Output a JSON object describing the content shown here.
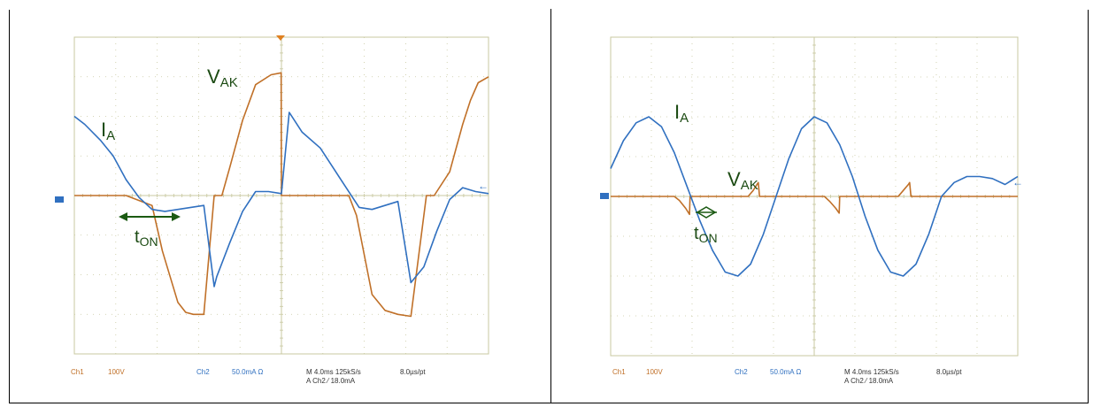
{
  "chart_data": [
    {
      "type": "line",
      "panel": "left",
      "title": "",
      "xlabel": "",
      "ylabel": "",
      "grid": true,
      "annotations": {
        "ia": "I",
        "ia_sub": "A",
        "vak": "V",
        "vak_sub": "AK",
        "ton": "t",
        "ton_sub": "ON"
      },
      "footer": {
        "ch1": "Ch1",
        "ch1_scale": "100V",
        "ch2": "Ch2",
        "ch2_scale": "50.0mA Ω",
        "timebase": "M 4.0ms 125kS/s",
        "pt": "8.0µs/pt",
        "trigger": "A Ch2 ⁄ 18.0mA"
      },
      "series": [
        {
          "name": "V_AK",
          "color": "#c07028",
          "x": [
            0,
            0.6,
            1,
            2,
            3,
            3.4,
            4,
            4.3,
            4.6,
            5,
            5.4,
            5.7,
            6,
            6.5,
            7,
            7.6,
            7.99,
            8,
            8.01,
            9.5,
            10.6,
            10.9,
            11.2,
            11.5,
            12,
            12.5,
            13,
            13.6,
            13.9,
            14.5,
            15,
            15.3,
            15.6,
            16
          ],
          "y": [
            0,
            0,
            0,
            0,
            -0.25,
            -1.4,
            -2.7,
            -2.95,
            -3,
            -3,
            0,
            0,
            0.7,
            1.9,
            2.8,
            3.05,
            3.1,
            0,
            0,
            0,
            0,
            -0.5,
            -1.5,
            -2.5,
            -2.9,
            -3,
            -3.05,
            0,
            0,
            0.6,
            1.8,
            2.4,
            2.85,
            3
          ]
        },
        {
          "name": "I_A",
          "color": "#3070c0",
          "x": [
            0,
            0.4,
            1,
            1.5,
            2,
            2.5,
            3,
            3.5,
            4,
            4.5,
            5,
            5.4,
            5.5,
            6,
            6.5,
            7,
            7.5,
            8,
            8.3,
            8.8,
            9.5,
            10,
            10.5,
            11,
            11.5,
            12,
            12.5,
            13,
            13.5,
            14,
            14.5,
            15,
            15.5,
            16
          ],
          "y": [
            2,
            1.8,
            1.4,
            1,
            0.4,
            -0.05,
            -0.35,
            -0.4,
            -0.35,
            -0.3,
            -0.25,
            -2.3,
            -2.05,
            -1.2,
            -0.4,
            0.1,
            0.1,
            0.05,
            2.1,
            1.6,
            1.2,
            0.7,
            0.2,
            -0.3,
            -0.35,
            -0.25,
            -0.15,
            -2.2,
            -1.8,
            -0.9,
            -0.1,
            0.2,
            0.1,
            0.05
          ]
        }
      ]
    },
    {
      "type": "line",
      "panel": "right",
      "title": "",
      "xlabel": "",
      "ylabel": "",
      "grid": true,
      "annotations": {
        "ia": "I",
        "ia_sub": "A",
        "vak": "V",
        "vak_sub": "AK",
        "ton": "t",
        "ton_sub": "ON"
      },
      "footer": {
        "ch1": "Ch1",
        "ch1_scale": "100V",
        "ch2": "Ch2",
        "ch2_scale": "50.0mA Ω",
        "timebase": "M 4.0ms 125kS/s",
        "pt": "8.0µs/pt",
        "trigger": "A Ch2 ⁄ 18.0mA"
      },
      "series": [
        {
          "name": "V_AK",
          "color": "#c07028",
          "x": [
            0,
            2.5,
            2.7,
            2.95,
            3.1,
            3.12,
            5.4,
            5.6,
            5.75,
            5.8,
            5.85,
            8.4,
            8.6,
            8.85,
            8.98,
            9.0,
            11.3,
            11.5,
            11.7,
            11.75,
            11.8,
            16
          ],
          "y": [
            0,
            0,
            -0.1,
            -0.3,
            -0.45,
            0,
            0,
            0.15,
            0.3,
            0.35,
            0,
            0,
            -0.12,
            -0.3,
            -0.42,
            0,
            0,
            0.15,
            0.3,
            0.35,
            0,
            0
          ]
        },
        {
          "name": "I_A",
          "color": "#3070c0",
          "x": [
            0,
            0.5,
            1,
            1.5,
            2,
            2.5,
            3,
            3.5,
            4,
            4.5,
            5,
            5.5,
            6,
            6.5,
            7,
            7.5,
            8,
            8.5,
            9,
            9.5,
            10,
            10.5,
            11,
            11.5,
            12,
            12.5,
            13,
            13.5,
            14,
            14.5,
            15,
            15.5,
            16
          ],
          "y": [
            0.7,
            1.4,
            1.85,
            2.0,
            1.75,
            1.1,
            0.25,
            -0.6,
            -1.35,
            -1.9,
            -2.0,
            -1.7,
            -0.95,
            0.0,
            0.95,
            1.7,
            2.0,
            1.85,
            1.3,
            0.5,
            -0.5,
            -1.35,
            -1.9,
            -2.0,
            -1.7,
            -0.95,
            0.0,
            0.35,
            0.5,
            0.5,
            0.45,
            0.3,
            0.5
          ]
        }
      ]
    }
  ]
}
